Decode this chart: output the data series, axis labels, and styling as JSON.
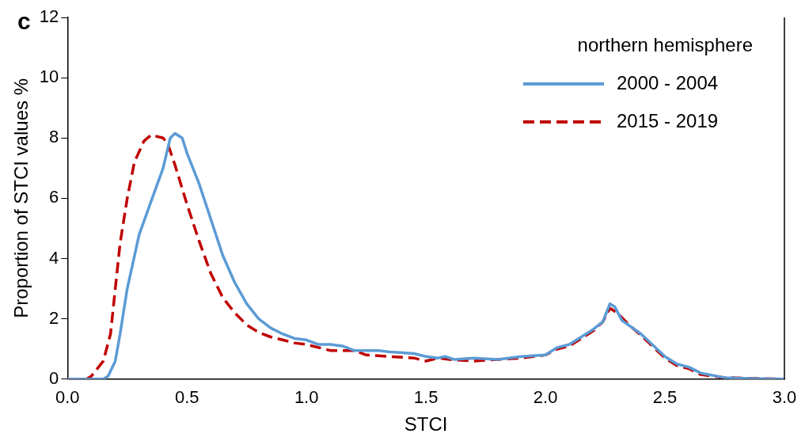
{
  "chart_data": {
    "type": "line",
    "xlabel": "STCI",
    "ylabel": "Proportion of STCI values %",
    "legend_title": "northern hemisphere",
    "annotations": [
      "c"
    ],
    "xlim": [
      0,
      3
    ],
    "xticks": [
      {
        "value": 0,
        "label": "0.0"
      },
      {
        "value": 0.5,
        "label": "0.5"
      },
      {
        "value": 1,
        "label": "1.0"
      },
      {
        "value": 1.5,
        "label": "1.5"
      },
      {
        "value": 2,
        "label": "2.0"
      },
      {
        "value": 2.5,
        "label": "2.5"
      },
      {
        "value": 3,
        "label": "3.0"
      }
    ],
    "ylim": [
      0,
      12
    ],
    "yticks": [
      0,
      2,
      4,
      6,
      8,
      10,
      12
    ],
    "grid": false,
    "legend": "top right",
    "marker": "none",
    "series": [
      {
        "name": "2000 - 2004",
        "color": "#5b9bd5",
        "line_style": "solid",
        "x": [
          0,
          0.1,
          0.15,
          0.17,
          0.2,
          0.22,
          0.25,
          0.3,
          0.35,
          0.4,
          0.43,
          0.45,
          0.48,
          0.5,
          0.55,
          0.6,
          0.65,
          0.7,
          0.75,
          0.8,
          0.85,
          0.9,
          0.95,
          1.0,
          1.05,
          1.1,
          1.15,
          1.2,
          1.3,
          1.35,
          1.45,
          1.5,
          1.55,
          1.58,
          1.62,
          1.7,
          1.8,
          1.9,
          2.0,
          2.05,
          2.1,
          2.15,
          2.2,
          2.24,
          2.27,
          2.29,
          2.32,
          2.4,
          2.5,
          2.55,
          2.6,
          2.65,
          2.75,
          2.85,
          3.0
        ],
        "values": [
          0,
          0,
          0,
          0.1,
          0.6,
          1.5,
          3.0,
          4.8,
          5.9,
          7.0,
          8.0,
          8.15,
          8.0,
          7.5,
          6.5,
          5.3,
          4.1,
          3.2,
          2.5,
          2.0,
          1.7,
          1.5,
          1.35,
          1.3,
          1.15,
          1.15,
          1.1,
          0.95,
          0.95,
          0.9,
          0.85,
          0.75,
          0.7,
          0.75,
          0.65,
          0.7,
          0.65,
          0.75,
          0.8,
          1.05,
          1.15,
          1.4,
          1.65,
          1.9,
          2.5,
          2.4,
          1.95,
          1.5,
          0.75,
          0.5,
          0.4,
          0.2,
          0.05,
          0.02,
          0
        ]
      },
      {
        "name": "2015 - 2019",
        "color": "#c00000",
        "line_style": "dashed",
        "x": [
          0,
          0.08,
          0.1,
          0.15,
          0.18,
          0.2,
          0.22,
          0.25,
          0.28,
          0.32,
          0.35,
          0.4,
          0.42,
          0.45,
          0.5,
          0.55,
          0.6,
          0.65,
          0.7,
          0.75,
          0.8,
          0.85,
          0.9,
          0.95,
          1.0,
          1.05,
          1.1,
          1.2,
          1.25,
          1.35,
          1.45,
          1.5,
          1.55,
          1.6,
          1.7,
          1.8,
          1.9,
          2.0,
          2.05,
          2.1,
          2.15,
          2.2,
          2.24,
          2.27,
          2.3,
          2.35,
          2.4,
          2.5,
          2.55,
          2.6,
          2.65,
          2.75,
          3.0
        ],
        "values": [
          0,
          0,
          0.1,
          0.6,
          1.5,
          3.0,
          4.5,
          6.0,
          7.2,
          7.9,
          8.1,
          8.0,
          7.8,
          7.1,
          5.8,
          4.6,
          3.5,
          2.7,
          2.2,
          1.8,
          1.55,
          1.4,
          1.3,
          1.2,
          1.15,
          1.05,
          0.95,
          0.95,
          0.8,
          0.75,
          0.7,
          0.6,
          0.7,
          0.65,
          0.6,
          0.65,
          0.7,
          0.8,
          1.0,
          1.1,
          1.35,
          1.6,
          1.9,
          2.35,
          2.2,
          1.8,
          1.45,
          0.7,
          0.45,
          0.35,
          0.15,
          0.05,
          0
        ]
      }
    ]
  }
}
